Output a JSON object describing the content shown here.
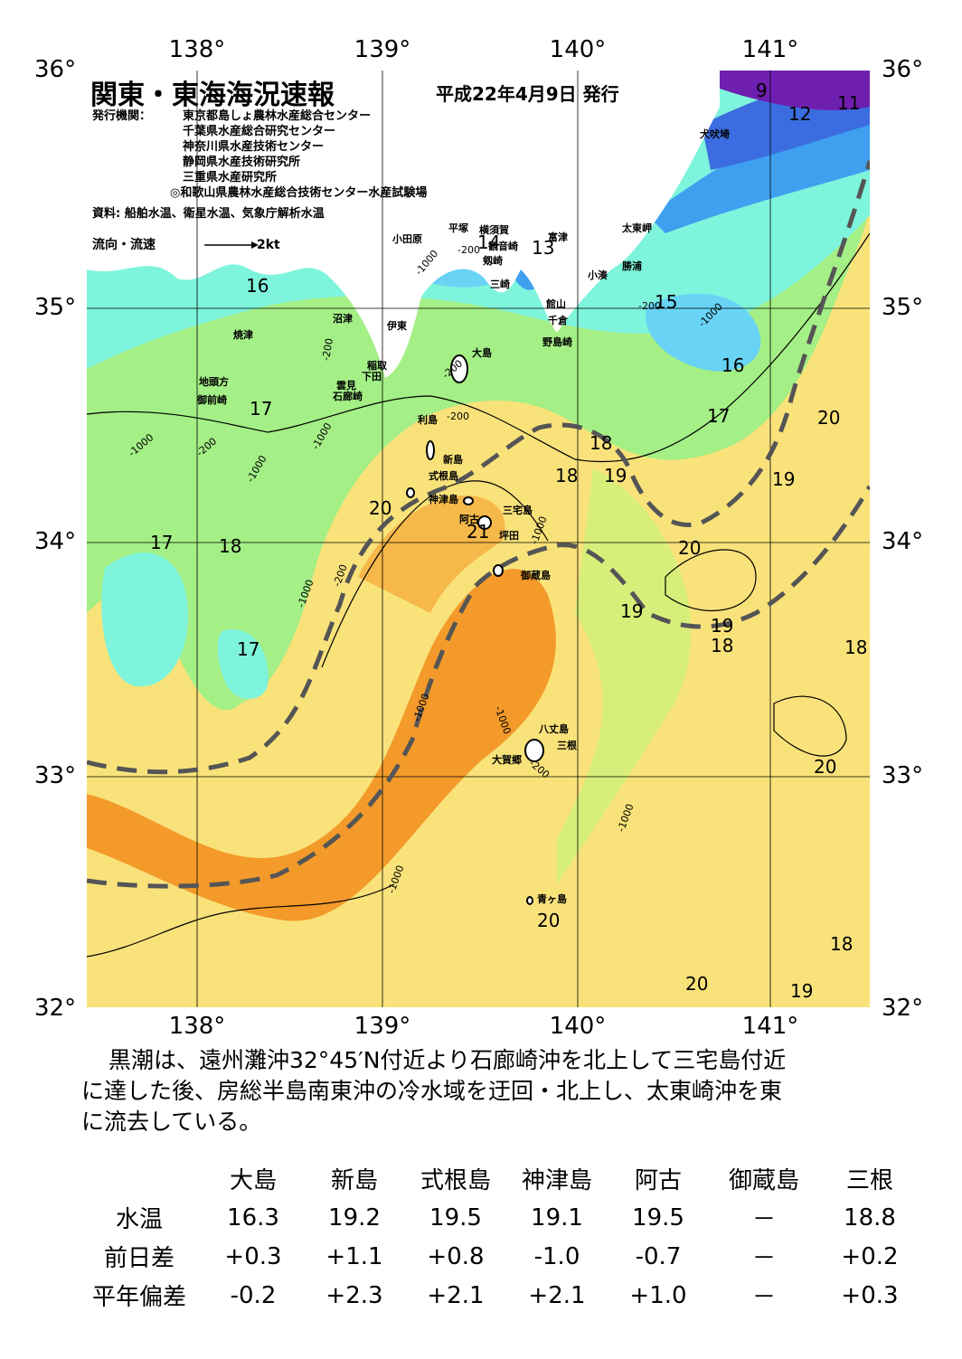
{
  "map": {
    "title": "関東・東海海況速報",
    "date": "平成22年4月9日 発行",
    "issuer_label": "発行機関：",
    "issuers": [
      "東京都島しょ農林水産総合センター",
      "千葉県水産総合研究センター",
      "神奈川県水産技術センター",
      "静岡県水産技術研究所",
      "三重県水産研究所",
      "◎和歌山県農林水産総合技術センター水産試験場"
    ],
    "source": "資料: 船舶水温、衛星水温、気象庁解析水温",
    "flow_legend": "流向・流速",
    "flow_scale": "2kt",
    "lon_ticks": [
      "138°",
      "139°",
      "140°",
      "141°"
    ],
    "lat_ticks": [
      "36°",
      "35°",
      "34°",
      "33°",
      "32°"
    ],
    "place_names": [
      "犬吠埼",
      "太東岬",
      "勝浦",
      "小湊",
      "館山",
      "千倉",
      "野島崎",
      "富津",
      "横須賀",
      "観音崎",
      "剱崎",
      "三崎",
      "平塚",
      "小田原",
      "沼津",
      "伊東",
      "焼津",
      "稲取",
      "下田",
      "雲見",
      "石廊崎",
      "地頭方",
      "御前崎",
      "大島",
      "利島",
      "新島",
      "式根島",
      "神津島",
      "三宅島",
      "阿古",
      "坪田",
      "御蔵島",
      "八丈島",
      "三根",
      "大賀郷",
      "青ヶ島"
    ],
    "depth_labels": [
      "-1000",
      "-200"
    ],
    "isotherm_labels": [
      "9",
      "11",
      "12",
      "13",
      "14",
      "15",
      "16",
      "16",
      "17",
      "17",
      "17",
      "17",
      "18",
      "18",
      "18",
      "18",
      "18",
      "18",
      "19",
      "19",
      "19",
      "19",
      "19",
      "20",
      "20",
      "20",
      "20",
      "20",
      "20",
      "20",
      "21"
    ],
    "colors": {
      "t9": "#6e1fb0",
      "t11": "#3a3fcf",
      "t12": "#3b6de0",
      "t13": "#3ea0ef",
      "t15": "#68d3f5",
      "t16": "#7ff4dc",
      "t17": "#a4ef86",
      "t18": "#86ea6a",
      "t19": "#d8ee7a",
      "t20": "#f9e27a",
      "t21": "#f6b84a",
      "t22": "#f39a2a",
      "land": "#ffffff",
      "kuroshio": "#555555"
    }
  },
  "summary": "黒潮は、遠州灘沖32°45′N付近より石廊崎沖を北上して三宅島付近に達した後、房総半島南東沖の冷水域を迂回・北上し、太東崎沖を東に流去している。",
  "summary_lines": [
    "黒潮は、遠州灘沖32°45′N付近より石廊崎沖を北上して三宅島付近",
    "に達した後、房総半島南東沖の冷水域を迂回・北上し、太東崎沖を東",
    "に流去している。"
  ],
  "table": {
    "columns": [
      "大島",
      "新島",
      "式根島",
      "神津島",
      "阿古",
      "御蔵島",
      "三根"
    ],
    "rows": [
      {
        "label": "水温",
        "values": [
          "16.3",
          "19.2",
          "19.5",
          "19.1",
          "19.5",
          "－",
          "18.8"
        ]
      },
      {
        "label": "前日差",
        "values": [
          "+0.3",
          "+1.1",
          "+0.8",
          "-1.0",
          "-0.7",
          "－",
          "+0.2"
        ]
      },
      {
        "label": "平年偏差",
        "values": [
          "-0.2",
          "+2.3",
          "+2.1",
          "+2.1",
          "+1.0",
          "－",
          "+0.3"
        ]
      }
    ]
  }
}
